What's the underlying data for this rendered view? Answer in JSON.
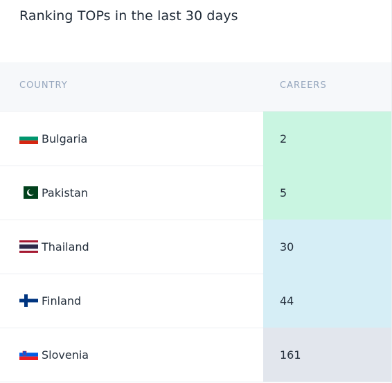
{
  "header": {
    "title": "Ranking TOPs in the last 30 days"
  },
  "table": {
    "columns": [
      "COUNTRY",
      "CAREERS"
    ],
    "rows": [
      [
        "Bulgaria",
        "2"
      ],
      [
        "Pakistan",
        "5"
      ],
      [
        "Thailand",
        "30"
      ],
      [
        "Finland",
        "44"
      ],
      [
        "Slovenia",
        "161"
      ]
    ]
  }
}
